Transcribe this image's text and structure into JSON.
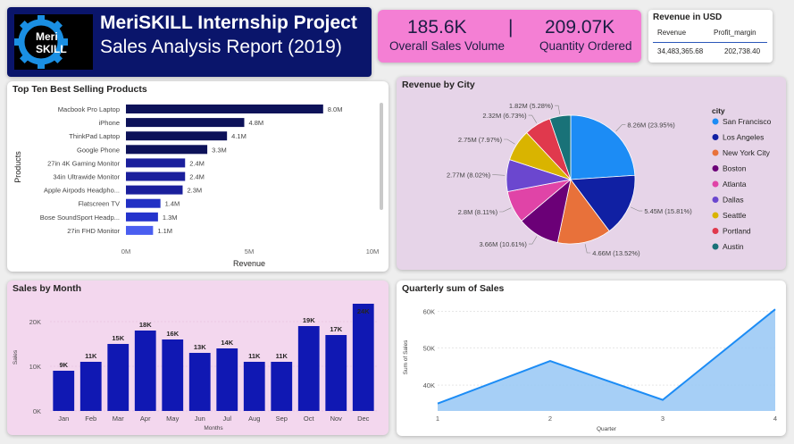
{
  "header": {
    "logo_text_top": "Meri",
    "logo_text_bottom": "SKILL",
    "title": "MeriSKILL Internship Project",
    "subtitle": "Sales Analysis Report (2019)"
  },
  "kpis": {
    "sales_volume_value": "185.6K",
    "sales_volume_label": "Overall Sales Volume",
    "separator": "|",
    "quantity_value": "209.07K",
    "quantity_label": "Quantity Ordered"
  },
  "revenue_table": {
    "title": "Revenue in USD",
    "col1_header": "Revenue",
    "col2_header": "Profit_margin",
    "col1_value": "34,483,365.68",
    "col2_value": "202,738.40"
  },
  "chart_data": [
    {
      "id": "best",
      "type": "bar",
      "orientation": "horizontal",
      "title": "Top Ten Best Selling Products",
      "xlabel": "Revenue",
      "ylabel": "Products",
      "categories": [
        "Macbook Pro Laptop",
        "iPhone",
        "ThinkPad Laptop",
        "Google Phone",
        "27in 4K Gaming Monitor",
        "34in Ultrawide Monitor",
        "Apple Airpods Headpho...",
        "Flatscreen TV",
        "Bose SoundSport Headp...",
        "27in FHD Monitor"
      ],
      "values": [
        8.0,
        4.8,
        4.1,
        3.3,
        2.4,
        2.4,
        2.3,
        1.4,
        1.3,
        1.1
      ],
      "data_labels": [
        "8.0M",
        "4.8M",
        "4.1M",
        "3.3M",
        "2.4M",
        "2.4M",
        "2.3M",
        "1.4M",
        "1.3M",
        "1.1M"
      ],
      "xlim": [
        0,
        10
      ],
      "xticks": [
        "0M",
        "5M",
        "10M"
      ],
      "colors": [
        "#0d1259",
        "#0d1259",
        "#0d1259",
        "#0d1259",
        "#1a1f9c",
        "#1a1f9c",
        "#1a1f9c",
        "#2130c4",
        "#2433cc",
        "#4a5ef0"
      ]
    },
    {
      "id": "city",
      "type": "pie",
      "title": "Revenue by City",
      "legend_title": "city",
      "legend_position": "right",
      "categories": [
        "San Francisco",
        "Los Angeles",
        "New York City",
        "Boston",
        "Atlanta",
        "Dallas",
        "Seattle",
        "Portland",
        "Austin"
      ],
      "values": [
        23.95,
        15.81,
        13.52,
        10.61,
        8.11,
        8.02,
        7.97,
        6.73,
        5.28
      ],
      "data_labels": [
        "8.26M (23.95%)",
        "5.45M (15.81%)",
        "4.66M (13.52%)",
        "3.66M (10.61%)",
        "2.8M (8.11%)",
        "2.77M (8.02%)",
        "2.75M (7.97%)",
        "2.32M (6.73%)",
        "1.82M (5.28%)"
      ],
      "colors": [
        "#1c8cf5",
        "#1020a3",
        "#e8713a",
        "#6b0077",
        "#e044a7",
        "#6b47cf",
        "#d9b400",
        "#e0394d",
        "#197278"
      ]
    },
    {
      "id": "month",
      "type": "bar",
      "title": "Sales by Month",
      "xlabel": "Months",
      "ylabel": "Sales",
      "categories": [
        "Jan",
        "Feb",
        "Mar",
        "Apr",
        "May",
        "Jun",
        "Jul",
        "Aug",
        "Sep",
        "Oct",
        "Nov",
        "Dec"
      ],
      "values": [
        9,
        11,
        15,
        18,
        16,
        13,
        14,
        11,
        11,
        19,
        17,
        24
      ],
      "data_labels": [
        "9K",
        "11K",
        "15K",
        "18K",
        "16K",
        "13K",
        "14K",
        "11K",
        "11K",
        "19K",
        "17K",
        "24K"
      ],
      "ylim": [
        0,
        24
      ],
      "yticks": [
        "0K",
        "10K",
        "20K"
      ],
      "color": "#1018b3"
    },
    {
      "id": "quarter",
      "type": "area",
      "title": "Quarterly sum of Sales",
      "xlabel": "Quarter",
      "ylabel": "Sum of Sales",
      "x": [
        1,
        2,
        3,
        4
      ],
      "values": [
        35,
        46.5,
        36,
        60.5
      ],
      "ylim": [
        33,
        62
      ],
      "yticks": [
        40,
        50,
        60
      ],
      "ytick_labels": [
        "40K",
        "50K",
        "60K"
      ],
      "line_color": "#1c8cf5",
      "fill_color": "#9ccaf5"
    }
  ]
}
